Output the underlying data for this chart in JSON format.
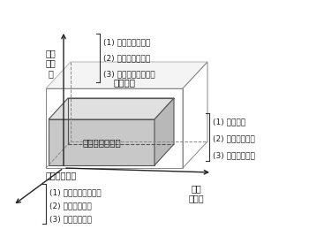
{
  "background_color": "#ffffff",
  "box_color_front": "#c8c8c8",
  "box_color_top": "#e0e0e0",
  "box_color_right": "#b8b8b8",
  "outer_box_color": "#e8e8e8",
  "outline_color": "#555555",
  "axis_color": "#222222",
  "text_color": "#222222",
  "label_y_axis": "学生\n主动\n性",
  "label_x_axis": "思维\n深刻性",
  "label_z_axis": "自主思维时间",
  "box_label": "连续的学习任务",
  "top_label": "思维深入",
  "right_annotations": [
    "(1) 概括能力",
    "(2) 逻辑推理能力",
    "(3) 对本质的理解"
  ],
  "top_annotations": [
    "(1) 参与活动的次数",
    "(2) 参与活动的状态",
    "(3) 自由完整表达次数"
  ],
  "bottom_annotations": [
    "(1) 小组合作学习时间",
    "(2) 自主学习时间",
    "(3) 组间交流时间"
  ],
  "font_size_label": 7,
  "font_size_box": 7.5,
  "font_size_annot": 6.5
}
